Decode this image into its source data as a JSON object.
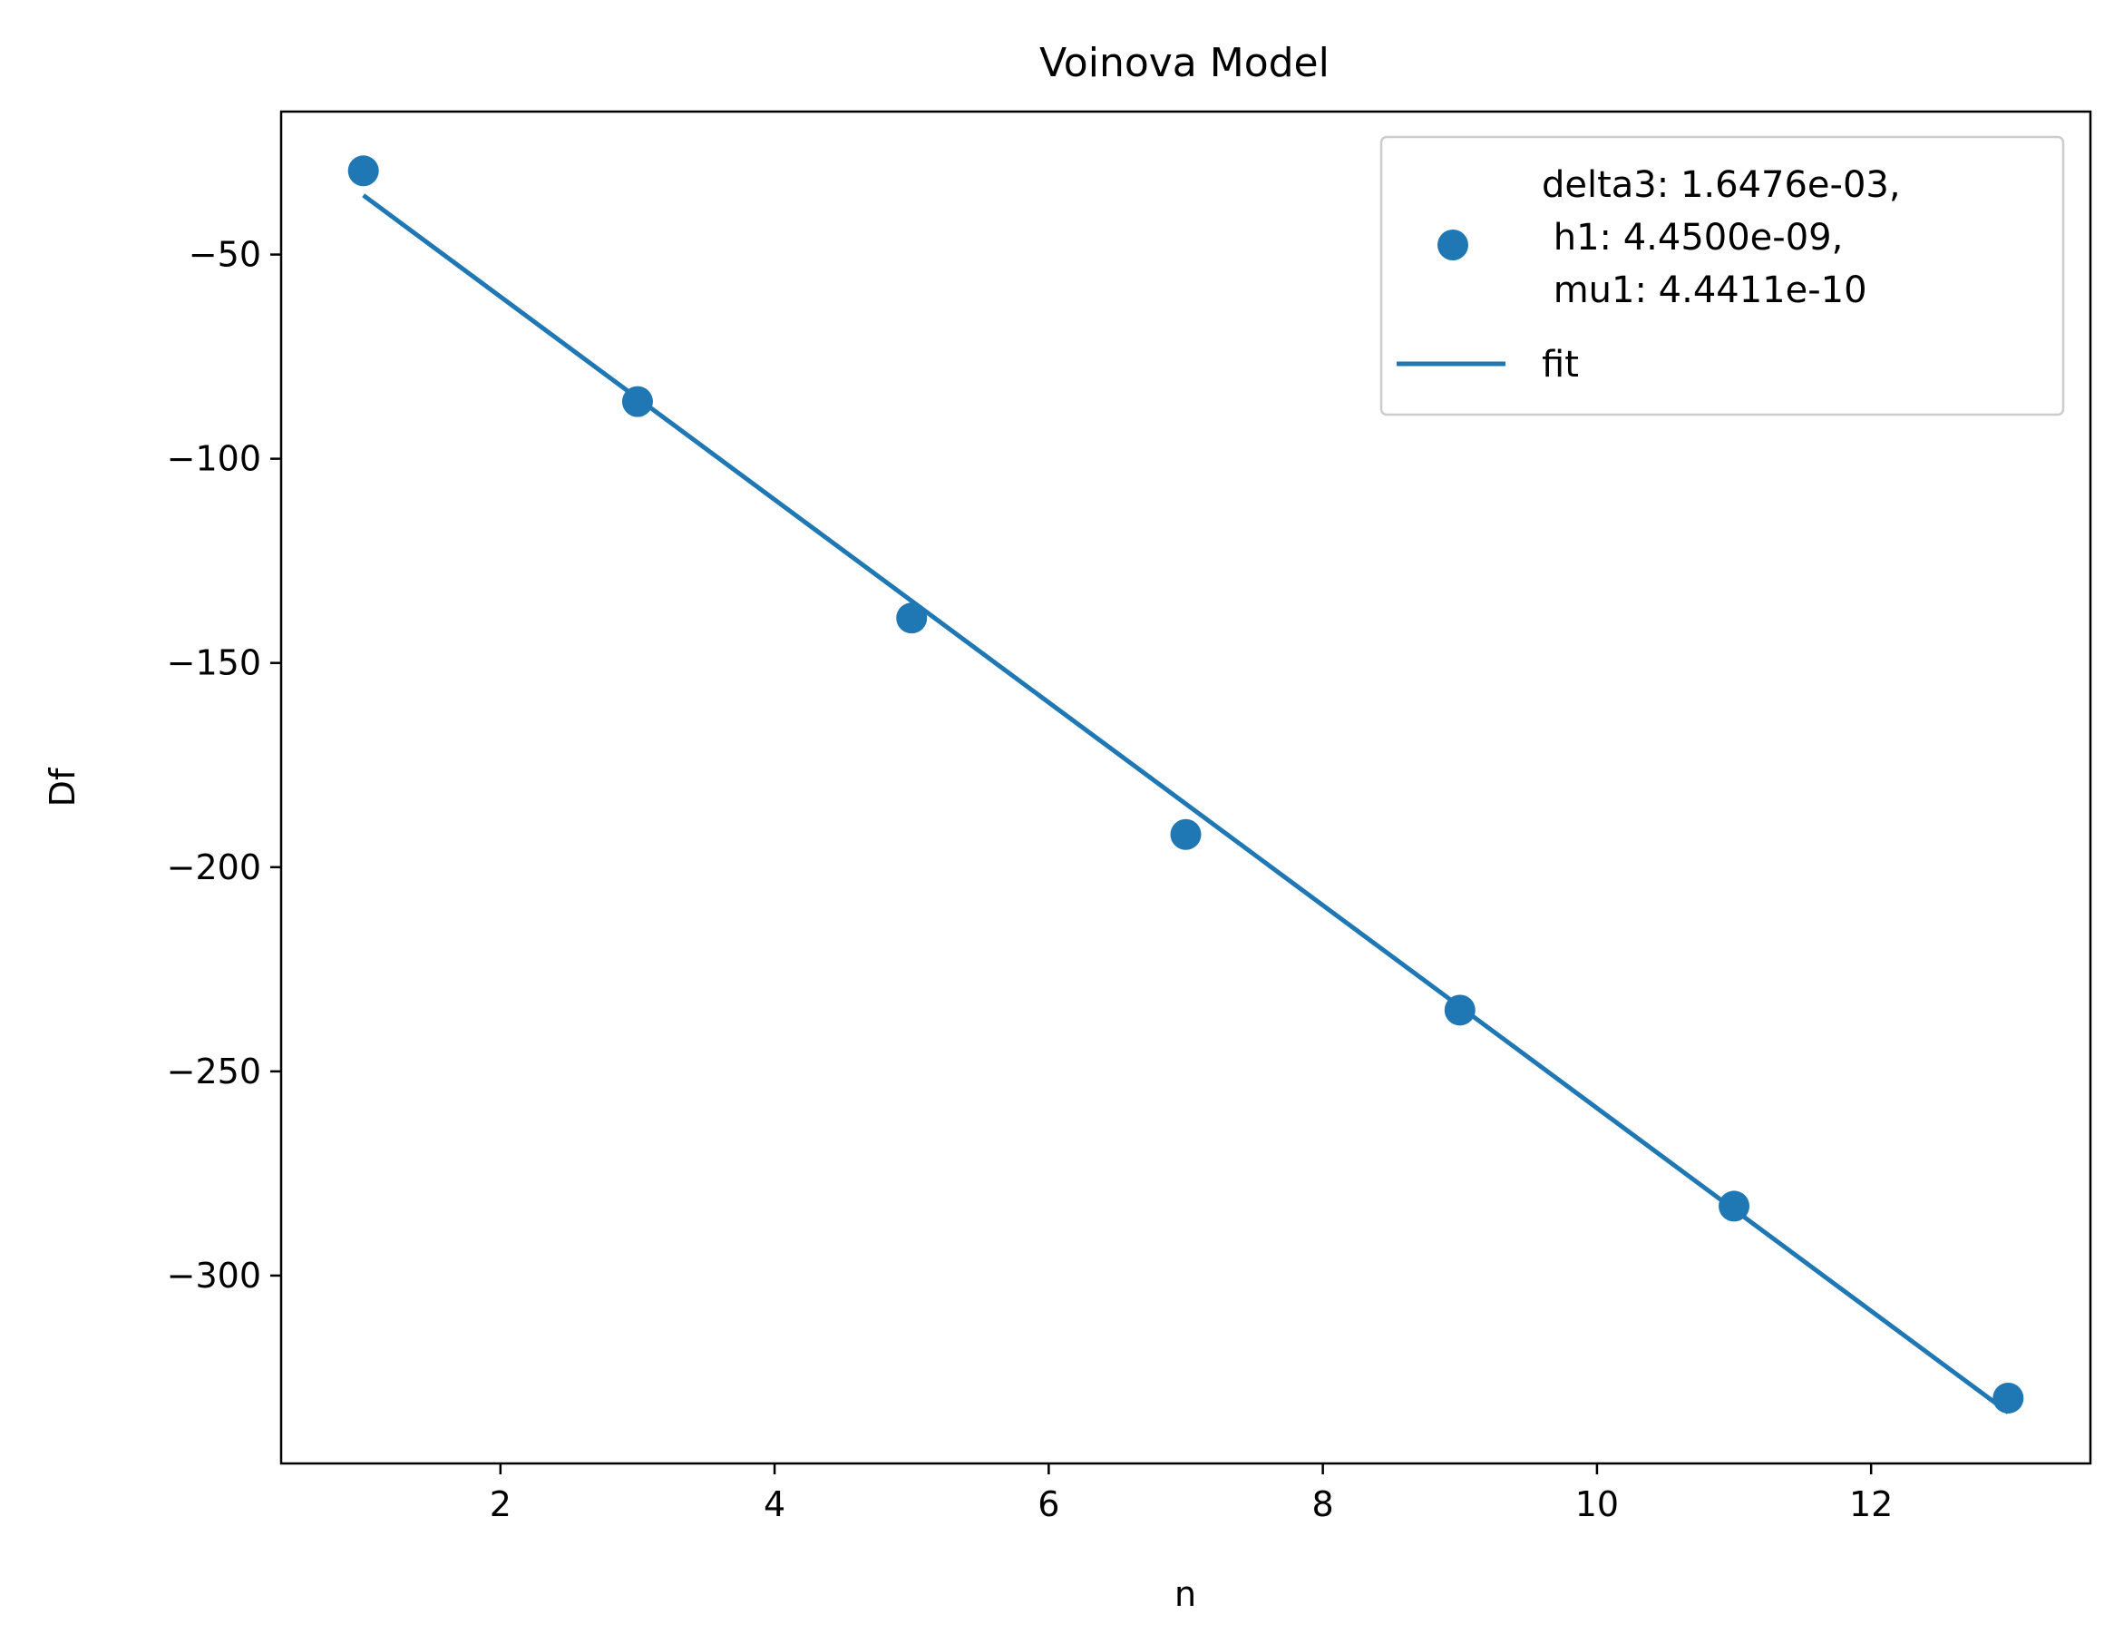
{
  "chart_data": {
    "type": "scatter",
    "title": "Voinova Model",
    "xlabel": "n",
    "ylabel": "Df",
    "xlim": [
      0.4,
      13.6
    ],
    "ylim": [
      -346,
      -15
    ],
    "xticks": [
      2,
      4,
      6,
      8,
      10,
      12
    ],
    "xtick_labels": [
      "2",
      "4",
      "6",
      "8",
      "10",
      "12"
    ],
    "yticks": [
      -50,
      -100,
      -150,
      -200,
      -250,
      -300
    ],
    "ytick_labels": [
      "−50",
      "−100",
      "−150",
      "−200",
      "−250",
      "−300"
    ],
    "grid": false,
    "legend_position": "upper right",
    "series": [
      {
        "name": "delta3: 1.6476e-03,\n h1: 4.4500e-09,\n mu1: 4.4411e-10",
        "name_lines": [
          "delta3: 1.6476e-03,",
          " h1: 4.4500e-09,",
          " mu1: 4.4411e-10"
        ],
        "kind": "scatter",
        "color": "#1f77b4",
        "x": [
          1,
          3,
          5,
          7,
          9,
          11,
          13
        ],
        "y": [
          -29.5,
          -86,
          -139,
          -192,
          -235,
          -283,
          -330
        ]
      },
      {
        "name": "fit",
        "kind": "line",
        "color": "#1f77b4",
        "x": [
          1,
          13
        ],
        "y": [
          -35.5,
          -333.5
        ]
      }
    ]
  }
}
